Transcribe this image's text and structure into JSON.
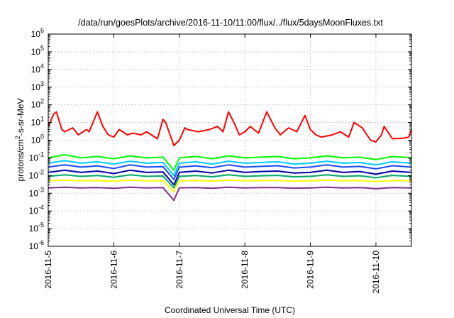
{
  "chart_data": {
    "type": "line",
    "title": "/data/run/goesPlots/archive/2016-11-10/11:00/flux/../flux/5daysMoonFluxes.txt",
    "xlabel": "Coordinated Universal Time (UTC)",
    "ylabel": "protons/cm²-s-sr-MeV",
    "y_scale": "log",
    "y_tick_base": "10",
    "y_tick_exponents": [
      "-6",
      "-5",
      "-4",
      "-3",
      "-2",
      "-1",
      "0",
      "1",
      "2",
      "3",
      "4",
      "5",
      "6"
    ],
    "ylim": [
      1e-06,
      1000000.0
    ],
    "xlim": [
      "2016-11-05T00:00",
      "2016-11-10T13:00"
    ],
    "x_ticks": [
      "2016-11-5",
      "2016-11-6",
      "2016-11-7",
      "2016-11-8",
      "2016-11-9",
      "2016-11-10"
    ],
    "grid": true,
    "series": [
      {
        "color": "#ff0000",
        "x": [
          "2016-11-05T00:00",
          "2016-11-05T02:00",
          "2016-11-05T03:00",
          "2016-11-05T05:00",
          "2016-11-05T06:00",
          "2016-11-05T09:00",
          "2016-11-05T11:00",
          "2016-11-05T14:00",
          "2016-11-05T15:00",
          "2016-11-05T18:00",
          "2016-11-05T20:00",
          "2016-11-05T22:00",
          "2016-11-06T00:00",
          "2016-11-06T02:00",
          "2016-11-06T05:00",
          "2016-11-06T07:00",
          "2016-11-06T10:00",
          "2016-11-06T12:00",
          "2016-11-06T16:00",
          "2016-11-06T18:00",
          "2016-11-06T19:00",
          "2016-11-06T22:00",
          "2016-11-07T00:00",
          "2016-11-07T02:00",
          "2016-11-07T03:00",
          "2016-11-07T07:00",
          "2016-11-07T11:00",
          "2016-11-07T14:00",
          "2016-11-07T16:00",
          "2016-11-07T18:00",
          "2016-11-07T20:00",
          "2016-11-07T22:00",
          "2016-11-08T00:00",
          "2016-11-08T02:00",
          "2016-11-08T05:00",
          "2016-11-08T08:00",
          "2016-11-08T11:00",
          "2016-11-08T13:00",
          "2016-11-08T16:00",
          "2016-11-08T19:00",
          "2016-11-08T22:00",
          "2016-11-09T00:00",
          "2016-11-09T02:00",
          "2016-11-09T04:00",
          "2016-11-09T08:00",
          "2016-11-09T11:00",
          "2016-11-09T14:00",
          "2016-11-09T16:00",
          "2016-11-09T19:00",
          "2016-11-09T22:00",
          "2016-11-10T00:00",
          "2016-11-10T02:00",
          "2016-11-10T03:00",
          "2016-11-10T06:00",
          "2016-11-10T10:00",
          "2016-11-10T12:00",
          "2016-11-10T13:00"
        ],
        "values": [
          6,
          30,
          40,
          4,
          3,
          5,
          2,
          4,
          3,
          40,
          6,
          2,
          1.5,
          4,
          2,
          2.5,
          2,
          3,
          1.2,
          15,
          10,
          0.5,
          1,
          5,
          4,
          3,
          4,
          6,
          3,
          40,
          10,
          2,
          3,
          6,
          2.5,
          40,
          5,
          2,
          5,
          3,
          25,
          4,
          2,
          1.5,
          2,
          3,
          1.5,
          10,
          5,
          1,
          0.8,
          2,
          6,
          1.2,
          1.3,
          1.5,
          4
        ]
      },
      {
        "color": "#00ff00",
        "x": [
          "2016-11-05T00:00",
          "2016-11-05T06:00",
          "2016-11-05T12:00",
          "2016-11-05T18:00",
          "2016-11-06T00:00",
          "2016-11-06T06:00",
          "2016-11-06T12:00",
          "2016-11-06T18:00",
          "2016-11-06T22:00",
          "2016-11-07T00:00",
          "2016-11-07T06:00",
          "2016-11-07T12:00",
          "2016-11-07T18:00",
          "2016-11-08T00:00",
          "2016-11-08T06:00",
          "2016-11-08T12:00",
          "2016-11-08T18:00",
          "2016-11-09T00:00",
          "2016-11-09T06:00",
          "2016-11-09T12:00",
          "2016-11-09T18:00",
          "2016-11-10T00:00",
          "2016-11-10T06:00",
          "2016-11-10T13:00"
        ],
        "values": [
          0.1,
          0.15,
          0.1,
          0.12,
          0.09,
          0.13,
          0.1,
          0.11,
          0.02,
          0.1,
          0.12,
          0.09,
          0.13,
          0.1,
          0.11,
          0.12,
          0.09,
          0.1,
          0.13,
          0.1,
          0.11,
          0.08,
          0.12,
          0.1
        ]
      },
      {
        "color": "#00ccff",
        "x": [
          "2016-11-05T00:00",
          "2016-11-05T06:00",
          "2016-11-05T12:00",
          "2016-11-05T18:00",
          "2016-11-06T00:00",
          "2016-11-06T06:00",
          "2016-11-06T12:00",
          "2016-11-06T18:00",
          "2016-11-06T22:00",
          "2016-11-07T00:00",
          "2016-11-07T06:00",
          "2016-11-07T12:00",
          "2016-11-07T18:00",
          "2016-11-08T00:00",
          "2016-11-08T06:00",
          "2016-11-08T12:00",
          "2016-11-08T18:00",
          "2016-11-09T00:00",
          "2016-11-09T06:00",
          "2016-11-09T12:00",
          "2016-11-09T18:00",
          "2016-11-10T00:00",
          "2016-11-10T06:00",
          "2016-11-10T13:00"
        ],
        "values": [
          0.05,
          0.07,
          0.05,
          0.06,
          0.045,
          0.065,
          0.05,
          0.055,
          0.01,
          0.05,
          0.06,
          0.045,
          0.065,
          0.05,
          0.055,
          0.06,
          0.045,
          0.05,
          0.065,
          0.05,
          0.055,
          0.04,
          0.06,
          0.05
        ]
      },
      {
        "color": "#1a4dff",
        "x": [
          "2016-11-05T00:00",
          "2016-11-05T06:00",
          "2016-11-05T12:00",
          "2016-11-05T18:00",
          "2016-11-06T00:00",
          "2016-11-06T06:00",
          "2016-11-06T12:00",
          "2016-11-06T18:00",
          "2016-11-06T22:00",
          "2016-11-07T00:00",
          "2016-11-07T06:00",
          "2016-11-07T12:00",
          "2016-11-07T18:00",
          "2016-11-08T00:00",
          "2016-11-08T06:00",
          "2016-11-08T12:00",
          "2016-11-08T18:00",
          "2016-11-09T00:00",
          "2016-11-09T06:00",
          "2016-11-09T12:00",
          "2016-11-09T18:00",
          "2016-11-10T00:00",
          "2016-11-10T06:00",
          "2016-11-10T13:00"
        ],
        "values": [
          0.03,
          0.04,
          0.03,
          0.035,
          0.025,
          0.04,
          0.03,
          0.032,
          0.006,
          0.03,
          0.035,
          0.028,
          0.04,
          0.03,
          0.033,
          0.036,
          0.027,
          0.03,
          0.04,
          0.03,
          0.033,
          0.024,
          0.036,
          0.03
        ]
      },
      {
        "color": "#0000aa",
        "x": [
          "2016-11-05T00:00",
          "2016-11-05T06:00",
          "2016-11-05T12:00",
          "2016-11-05T18:00",
          "2016-11-06T00:00",
          "2016-11-06T06:00",
          "2016-11-06T12:00",
          "2016-11-06T18:00",
          "2016-11-06T22:00",
          "2016-11-07T00:00",
          "2016-11-07T06:00",
          "2016-11-07T12:00",
          "2016-11-07T18:00",
          "2016-11-08T00:00",
          "2016-11-08T06:00",
          "2016-11-08T12:00",
          "2016-11-08T18:00",
          "2016-11-09T00:00",
          "2016-11-09T06:00",
          "2016-11-09T12:00",
          "2016-11-09T18:00",
          "2016-11-10T00:00",
          "2016-11-10T06:00",
          "2016-11-10T13:00"
        ],
        "values": [
          0.015,
          0.02,
          0.015,
          0.018,
          0.013,
          0.02,
          0.015,
          0.016,
          0.003,
          0.015,
          0.018,
          0.014,
          0.02,
          0.015,
          0.017,
          0.018,
          0.014,
          0.015,
          0.02,
          0.015,
          0.017,
          0.012,
          0.018,
          0.015
        ]
      },
      {
        "color": "#00aa66",
        "x": [
          "2016-11-05T00:00",
          "2016-11-05T06:00",
          "2016-11-05T12:00",
          "2016-11-05T18:00",
          "2016-11-06T00:00",
          "2016-11-06T06:00",
          "2016-11-06T12:00",
          "2016-11-06T18:00",
          "2016-11-06T22:00",
          "2016-11-07T00:00",
          "2016-11-07T06:00",
          "2016-11-07T12:00",
          "2016-11-07T18:00",
          "2016-11-08T00:00",
          "2016-11-08T06:00",
          "2016-11-08T12:00",
          "2016-11-08T18:00",
          "2016-11-09T00:00",
          "2016-11-09T06:00",
          "2016-11-09T12:00",
          "2016-11-09T18:00",
          "2016-11-10T00:00",
          "2016-11-10T06:00",
          "2016-11-10T13:00"
        ],
        "values": [
          0.009,
          0.011,
          0.009,
          0.01,
          0.008,
          0.011,
          0.009,
          0.0095,
          0.002,
          0.009,
          0.01,
          0.0085,
          0.011,
          0.009,
          0.0098,
          0.0102,
          0.0085,
          0.009,
          0.011,
          0.009,
          0.0098,
          0.0075,
          0.0102,
          0.009
        ]
      },
      {
        "color": "#ffff00",
        "x": [
          "2016-11-05T00:00",
          "2016-11-05T06:00",
          "2016-11-05T12:00",
          "2016-11-05T18:00",
          "2016-11-06T00:00",
          "2016-11-06T06:00",
          "2016-11-06T12:00",
          "2016-11-06T18:00",
          "2016-11-06T22:00",
          "2016-11-07T00:00",
          "2016-11-07T06:00",
          "2016-11-07T12:00",
          "2016-11-07T18:00",
          "2016-11-08T00:00",
          "2016-11-08T06:00",
          "2016-11-08T12:00",
          "2016-11-08T18:00",
          "2016-11-09T00:00",
          "2016-11-09T06:00",
          "2016-11-09T12:00",
          "2016-11-09T18:00",
          "2016-11-10T00:00",
          "2016-11-10T06:00",
          "2016-11-10T13:00"
        ],
        "values": [
          0.005,
          0.0055,
          0.005,
          0.0052,
          0.0048,
          0.0055,
          0.005,
          0.0051,
          0.0012,
          0.005,
          0.0053,
          0.0049,
          0.0055,
          0.005,
          0.0052,
          0.0053,
          0.0049,
          0.005,
          0.0055,
          0.005,
          0.0052,
          0.0046,
          0.0053,
          0.005
        ]
      },
      {
        "color": "#7f2f8f",
        "x": [
          "2016-11-05T00:00",
          "2016-11-05T06:00",
          "2016-11-05T12:00",
          "2016-11-05T18:00",
          "2016-11-06T00:00",
          "2016-11-06T06:00",
          "2016-11-06T12:00",
          "2016-11-06T18:00",
          "2016-11-06T22:00",
          "2016-11-07T00:00",
          "2016-11-07T06:00",
          "2016-11-07T12:00",
          "2016-11-07T18:00",
          "2016-11-08T00:00",
          "2016-11-08T06:00",
          "2016-11-08T12:00",
          "2016-11-08T18:00",
          "2016-11-09T00:00",
          "2016-11-09T06:00",
          "2016-11-09T12:00",
          "2016-11-09T18:00",
          "2016-11-10T00:00",
          "2016-11-10T06:00",
          "2016-11-10T13:00"
        ],
        "values": [
          0.002,
          0.0022,
          0.002,
          0.0021,
          0.0019,
          0.0022,
          0.002,
          0.0021,
          0.0004,
          0.002,
          0.0021,
          0.0019,
          0.0022,
          0.002,
          0.0021,
          0.0021,
          0.0019,
          0.002,
          0.0022,
          0.002,
          0.0021,
          0.0018,
          0.0021,
          0.002
        ]
      }
    ]
  }
}
